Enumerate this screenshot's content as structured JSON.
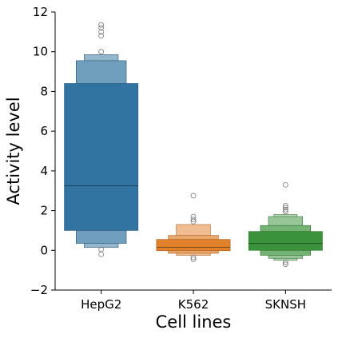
{
  "chart_data": {
    "type": "boxen",
    "xlabel": "Cell lines",
    "ylabel": "Activity level",
    "categories": [
      "HepG2",
      "K562",
      "SKNSH"
    ],
    "ylim": [
      -2,
      12
    ],
    "yticks": [
      -2,
      0,
      2,
      4,
      6,
      8,
      10,
      12
    ],
    "ytick_labels": [
      "−2",
      "0",
      "2",
      "4",
      "6",
      "8",
      "10",
      "12"
    ],
    "grid": false,
    "legend": "none",
    "colors": {
      "HepG2": "#3274a1",
      "K562": "#e1812c",
      "SKNSH": "#3a923a"
    },
    "series": [
      {
        "category": "HepG2",
        "median": 3.25,
        "boxes": [
          {
            "low": 1.0,
            "high": 8.4
          },
          {
            "low": 0.35,
            "high": 9.55
          },
          {
            "low": 0.15,
            "high": 9.85
          }
        ],
        "outliers": [
          10.0,
          10.8,
          11.0,
          11.2,
          11.35,
          0.05,
          -0.2
        ]
      },
      {
        "category": "K562",
        "median": 0.15,
        "boxes": [
          {
            "low": -0.02,
            "high": 0.55
          },
          {
            "low": -0.15,
            "high": 0.75
          },
          {
            "low": -0.25,
            "high": 1.3
          }
        ],
        "outliers": [
          1.45,
          1.55,
          1.7,
          2.75,
          -0.35,
          -0.45
        ]
      },
      {
        "category": "SKNSH",
        "median": 0.35,
        "boxes": [
          {
            "low": 0.0,
            "high": 0.95
          },
          {
            "low": -0.25,
            "high": 1.25
          },
          {
            "low": -0.4,
            "high": 1.7
          },
          {
            "low": -0.5,
            "high": 1.8
          }
        ],
        "outliers": [
          1.95,
          2.05,
          2.15,
          2.25,
          3.3,
          -0.6,
          -0.7
        ]
      }
    ]
  }
}
